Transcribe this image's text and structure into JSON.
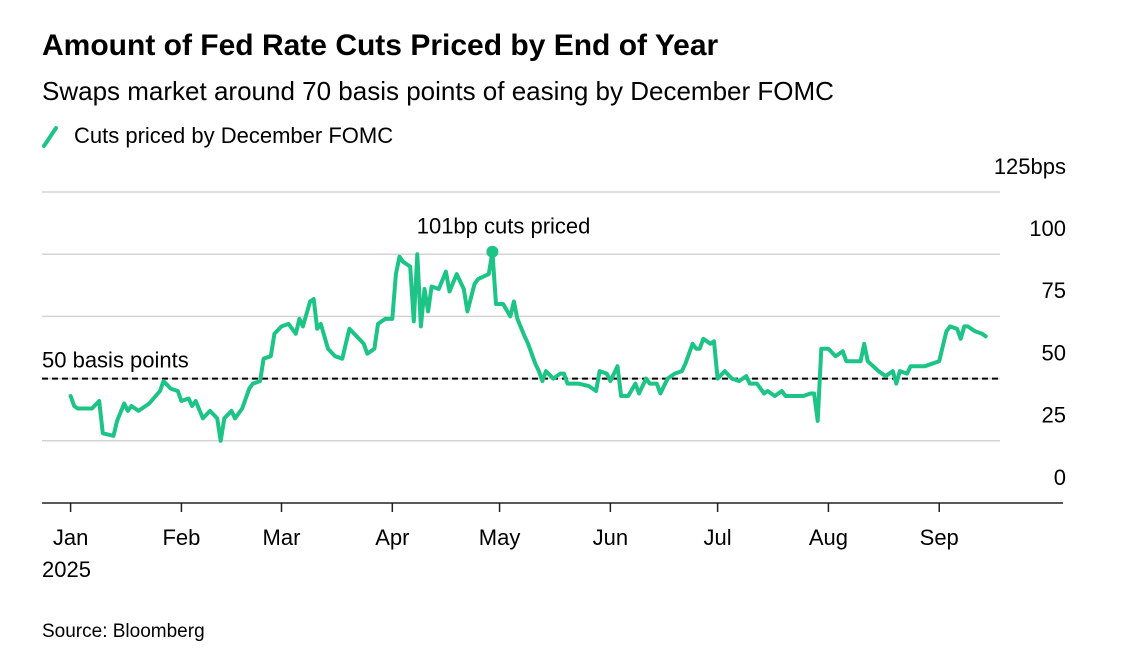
{
  "chart_data": {
    "type": "line",
    "title": "Amount of Fed Rate Cuts Priced by End of Year",
    "subtitle": "Swaps market around 70 basis points of easing by December FOMC",
    "source": "Source: Bloomberg",
    "x_year_label": "2025",
    "x": [
      1,
      2,
      3,
      7,
      9,
      10,
      13,
      14,
      16,
      17,
      18,
      20,
      23,
      26,
      27,
      29,
      31,
      32,
      34,
      35,
      36,
      38,
      40,
      42,
      43,
      44,
      46,
      47,
      49,
      51,
      52,
      54,
      55,
      57,
      58,
      60,
      62,
      64,
      65,
      66,
      68,
      69,
      70,
      71,
      73,
      75,
      77,
      78,
      79,
      81,
      83,
      84,
      86,
      87,
      89,
      91,
      92,
      93,
      94,
      96,
      97,
      98,
      99,
      100,
      101,
      102,
      104,
      106,
      107,
      109,
      111,
      112,
      114,
      115,
      118,
      119,
      120,
      122,
      124,
      125,
      126,
      128,
      129,
      131,
      132,
      133,
      134,
      136,
      138,
      139,
      140,
      143,
      146,
      148,
      149,
      151,
      152,
      154,
      155,
      157,
      159,
      160,
      162,
      163,
      165,
      166,
      168,
      170,
      172,
      173,
      175,
      176,
      177,
      178,
      180,
      181,
      182,
      184,
      186,
      188,
      190,
      191,
      193,
      195,
      196,
      198,
      200,
      201,
      204,
      206,
      208,
      209,
      210,
      211,
      213,
      215,
      217,
      218,
      221,
      222,
      223,
      224,
      227,
      229,
      231,
      232,
      233,
      235,
      236,
      238,
      240,
      242,
      244,
      246,
      247,
      249,
      250,
      251,
      252,
      254,
      256,
      257
    ],
    "series": [
      {
        "name": "Cuts priced by December FOMC",
        "color": "#1cc486",
        "values": [
          43,
          39,
          38,
          38,
          41,
          28,
          27,
          33,
          40,
          37,
          39,
          37,
          40,
          45,
          49,
          46,
          45,
          41,
          42,
          39,
          41,
          34,
          37,
          34,
          25,
          34,
          37,
          34,
          38,
          46,
          48,
          49,
          58,
          59,
          68,
          71,
          72,
          68,
          74,
          71,
          81,
          82,
          70,
          72,
          62,
          59,
          58,
          64,
          70,
          67,
          64,
          60,
          62,
          72,
          74,
          74,
          92,
          99,
          97,
          95,
          73,
          100,
          71,
          86,
          77,
          87,
          86,
          93,
          85,
          92,
          86,
          77,
          88,
          90,
          92,
          101,
          80,
          80,
          75,
          81,
          74,
          67,
          64,
          56,
          53,
          49,
          53,
          50,
          52,
          52,
          48,
          48,
          47,
          45,
          53,
          52,
          49,
          55,
          43,
          43,
          48,
          44,
          50,
          48,
          48,
          44,
          50,
          52,
          53,
          56,
          64,
          62,
          62,
          66,
          64,
          65,
          50,
          53,
          50,
          49,
          51,
          48,
          48,
          44,
          45,
          43,
          45,
          43,
          43,
          43,
          44,
          44,
          33,
          62,
          62,
          59,
          61,
          57,
          57,
          57,
          64,
          57,
          53,
          51,
          53,
          48,
          53,
          52,
          55,
          55,
          55,
          56,
          57,
          69,
          71,
          70,
          66,
          71,
          71,
          69,
          68,
          67
        ]
      }
    ],
    "annotation": {
      "text": "101bp cuts priced"
    },
    "reference_line": {
      "value": 50,
      "label": "50 basis points"
    },
    "xlim": [
      -7,
      261
    ],
    "xticks": [
      {
        "value": 1,
        "label": "Jan"
      },
      {
        "value": 32,
        "label": "Feb"
      },
      {
        "value": 60,
        "label": "Mar"
      },
      {
        "value": 91,
        "label": "Apr"
      },
      {
        "value": 121,
        "label": "May"
      },
      {
        "value": 152,
        "label": "Jun"
      },
      {
        "value": 182,
        "label": "Jul"
      },
      {
        "value": 213,
        "label": "Aug"
      },
      {
        "value": 244,
        "label": "Sep"
      }
    ],
    "ylim": [
      0,
      125
    ],
    "yticks": [
      0,
      25,
      50,
      75,
      100,
      {
        "value": 125,
        "label": "125bps"
      }
    ],
    "grid": true
  }
}
